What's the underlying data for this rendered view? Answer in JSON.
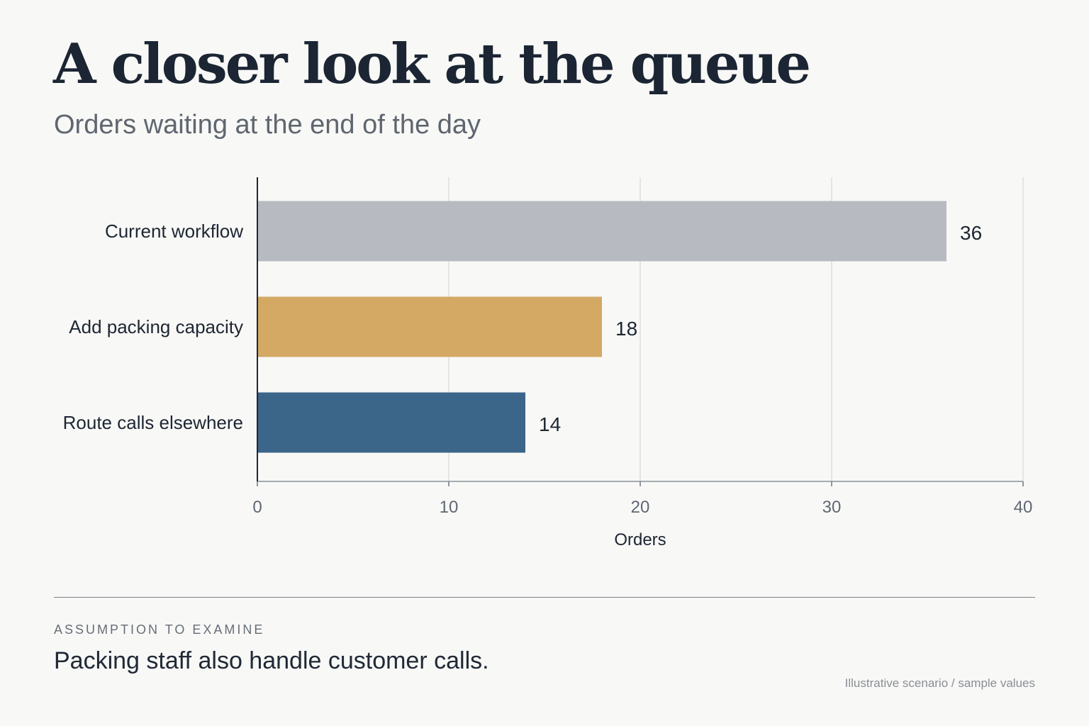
{
  "page": {
    "title": "A closer look at the queue",
    "subtitle": "Orders waiting at the end of the day"
  },
  "chart_data": {
    "type": "bar",
    "orientation": "horizontal",
    "title": "A closer look at the queue",
    "subtitle": "Orders waiting at the end of the day",
    "categories": [
      "Current workflow",
      "Add packing capacity",
      "Route calls elsewhere"
    ],
    "values": [
      36,
      18,
      14
    ],
    "bar_colors": [
      "#b7bbc1",
      "#d3a964",
      "#3b6589"
    ],
    "xlabel": "Orders",
    "ylabel": "",
    "xlim": [
      0,
      40
    ],
    "x_ticks": [
      0,
      10,
      20,
      30,
      40
    ],
    "data_labels": [
      "36",
      "18",
      "14"
    ],
    "grid": "vertical",
    "legend": "none"
  },
  "footer": {
    "kicker": "ASSUMPTION TO EXAMINE",
    "assumption": "Packing staff also handle customer calls.",
    "note": "Illustrative scenario / sample values"
  }
}
